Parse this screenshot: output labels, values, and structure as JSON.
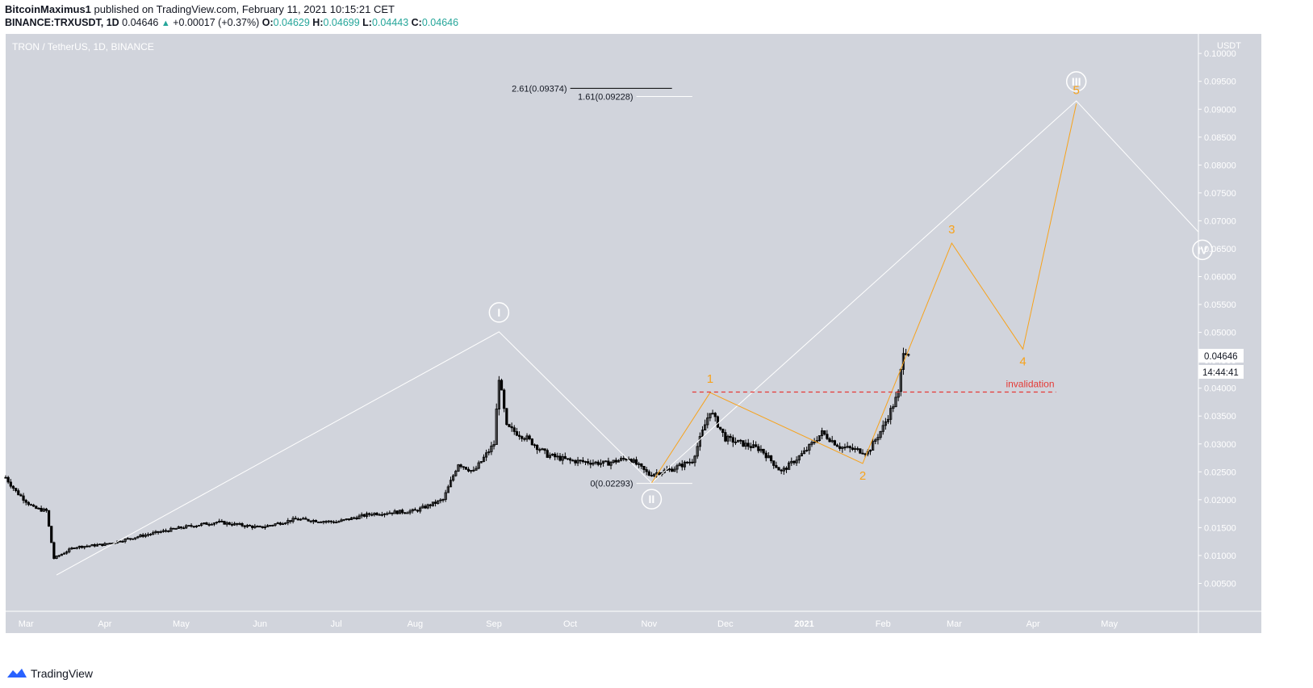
{
  "header": {
    "author": "BitcoinMaximus1",
    "published": "published on TradingView.com, February 11, 2021 10:15:21 CET",
    "symbol": "BINANCE:TRXUSDT, 1D",
    "last": "0.04646",
    "change": "+0.00017 (+0.37%)",
    "o_label": "O:",
    "o": "0.04629",
    "h_label": "H:",
    "h": "0.04699",
    "l_label": "L:",
    "l": "0.04443",
    "c_label": "C:",
    "c": "0.04646"
  },
  "chart_title": "TRON / TetherUS, 1D, BINANCE",
  "price_axis_unit": "USDT",
  "price_tag": "0.04646",
  "countdown": "14:44:41",
  "brand": "TradingView",
  "colors": {
    "plot_bg": "#d1d4dc",
    "candle": "#000000",
    "wave_primary": "#ffffff",
    "wave_minor": "#f7a21b",
    "invalidation": "#e53935",
    "up": "#26a69a"
  },
  "chart_data": {
    "type": "candlestick",
    "title": "TRON / TetherUS, 1D, BINANCE",
    "y_unit": "USDT",
    "ylim": [
      0.0,
      0.1035
    ],
    "y_ticks": [
      "0.00500",
      "0.01000",
      "0.01500",
      "0.02000",
      "0.02500",
      "0.03000",
      "0.03500",
      "0.04000",
      "0.04500",
      "0.05000",
      "0.05500",
      "0.06000",
      "0.06500",
      "0.07000",
      "0.07500",
      "0.08000",
      "0.08500",
      "0.09000",
      "0.09500",
      "0.10000"
    ],
    "x_range": [
      "2020-02-22",
      "2021-06-05"
    ],
    "x_ticks": [
      {
        "label": "Mar",
        "date": "2020-03-01"
      },
      {
        "label": "Apr",
        "date": "2020-04-01"
      },
      {
        "label": "May",
        "date": "2020-05-01"
      },
      {
        "label": "Jun",
        "date": "2020-06-01"
      },
      {
        "label": "Jul",
        "date": "2020-07-01"
      },
      {
        "label": "Aug",
        "date": "2020-08-01"
      },
      {
        "label": "Sep",
        "date": "2020-09-01"
      },
      {
        "label": "Oct",
        "date": "2020-10-01"
      },
      {
        "label": "Nov",
        "date": "2020-11-01"
      },
      {
        "label": "Dec",
        "date": "2020-12-01"
      },
      {
        "label": "2021",
        "date": "2021-01-01"
      },
      {
        "label": "Feb",
        "date": "2021-02-01"
      },
      {
        "label": "Mar",
        "date": "2021-03-01"
      },
      {
        "label": "Apr",
        "date": "2021-04-01"
      },
      {
        "label": "May",
        "date": "2021-05-01"
      }
    ],
    "price_path": [
      [
        "2020-02-22",
        0.024
      ],
      [
        "2020-02-26",
        0.0215
      ],
      [
        "2020-03-04",
        0.0185
      ],
      [
        "2020-03-09",
        0.018
      ],
      [
        "2020-03-12",
        0.0095
      ],
      [
        "2020-03-20",
        0.0115
      ],
      [
        "2020-04-01",
        0.012
      ],
      [
        "2020-04-15",
        0.0135
      ],
      [
        "2020-05-01",
        0.015
      ],
      [
        "2020-05-15",
        0.016
      ],
      [
        "2020-06-01",
        0.015
      ],
      [
        "2020-06-15",
        0.0165
      ],
      [
        "2020-07-01",
        0.016
      ],
      [
        "2020-07-15",
        0.0175
      ],
      [
        "2020-08-01",
        0.018
      ],
      [
        "2020-08-12",
        0.02
      ],
      [
        "2020-08-18",
        0.0265
      ],
      [
        "2020-08-24",
        0.025
      ],
      [
        "2020-09-01",
        0.03
      ],
      [
        "2020-09-03",
        0.042
      ],
      [
        "2020-09-06",
        0.033
      ],
      [
        "2020-09-14",
        0.031
      ],
      [
        "2020-09-22",
        0.028
      ],
      [
        "2020-10-01",
        0.027
      ],
      [
        "2020-10-15",
        0.0265
      ],
      [
        "2020-10-24",
        0.0275
      ],
      [
        "2020-11-01",
        0.0245
      ],
      [
        "2020-11-10",
        0.0255
      ],
      [
        "2020-11-18",
        0.027
      ],
      [
        "2020-11-25",
        0.036
      ],
      [
        "2020-12-01",
        0.031
      ],
      [
        "2020-12-15",
        0.029
      ],
      [
        "2020-12-23",
        0.025
      ],
      [
        "2021-01-01",
        0.0285
      ],
      [
        "2021-01-08",
        0.032
      ],
      [
        "2021-01-15",
        0.0295
      ],
      [
        "2021-01-26",
        0.0285
      ],
      [
        "2021-02-01",
        0.033
      ],
      [
        "2021-02-07",
        0.039
      ],
      [
        "2021-02-09",
        0.047
      ],
      [
        "2021-02-11",
        0.0465
      ]
    ],
    "primary_waves": [
      {
        "date": "2020-03-13",
        "price": 0.0065
      },
      {
        "date": "2020-09-03",
        "price": 0.0501,
        "label": "I"
      },
      {
        "date": "2020-11-02",
        "price": 0.023,
        "label": "II"
      },
      {
        "date": "2021-04-18",
        "price": 0.0915,
        "label": "III"
      },
      {
        "date": "2021-06-05",
        "price": 0.068
      }
    ],
    "primary_circle_label": {
      "text": "IV",
      "date": "2021-06-05",
      "price": 0.0648
    },
    "minor_waves": [
      {
        "date": "2020-11-02",
        "price": 0.023
      },
      {
        "date": "2020-11-25",
        "price": 0.0392,
        "label": "1"
      },
      {
        "date": "2021-01-24",
        "price": 0.0265,
        "label": "2"
      },
      {
        "date": "2021-02-28",
        "price": 0.066,
        "label": "3"
      },
      {
        "date": "2021-03-28",
        "price": 0.047,
        "label": "4"
      },
      {
        "date": "2021-04-18",
        "price": 0.091,
        "label": "5"
      }
    ],
    "fib_levels": [
      {
        "label": "2.61(0.09374)",
        "price": 0.09374,
        "from": "2020-10-01",
        "to": "2020-11-10"
      },
      {
        "label": "1.61(0.09228)",
        "price": 0.09228,
        "from": "2020-10-27",
        "to": "2020-11-18"
      },
      {
        "label": "0(0.02293)",
        "price": 0.02293,
        "from": "2020-10-27",
        "to": "2020-11-18"
      }
    ],
    "invalidation": {
      "label": "invalidation",
      "price": 0.0393,
      "from": "2020-11-18",
      "to": "2021-04-10"
    }
  }
}
